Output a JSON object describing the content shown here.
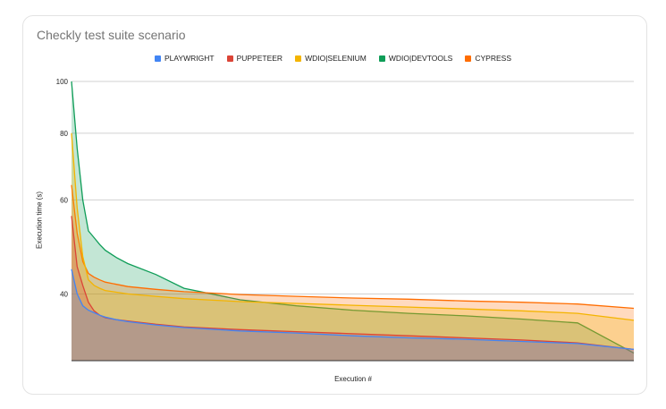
{
  "chart_data": {
    "type": "area",
    "title": "Checkly test suite scenario",
    "xlabel": "Execution #",
    "ylabel": "Execution time (s)",
    "yscale": "log",
    "ylim": [
      30,
      100
    ],
    "yticks": [
      40,
      60,
      80,
      100
    ],
    "grid": true,
    "legend_position": "top",
    "x": [
      0,
      1,
      2,
      3,
      4,
      5,
      6,
      8,
      10,
      15,
      20,
      30,
      40,
      50,
      60,
      70,
      80,
      90,
      100
    ],
    "series": [
      {
        "name": "PLAYWRIGHT",
        "color": "#4285f4",
        "values": [
          44.5,
          40,
          38,
          37.3,
          36.9,
          36.5,
          36.2,
          35.8,
          35.5,
          35.0,
          34.6,
          34.1,
          33.8,
          33.4,
          33.1,
          32.9,
          32.6,
          32.3,
          31.5
        ]
      },
      {
        "name": "PUPPETEER",
        "color": "#db4437",
        "values": [
          56,
          45,
          41.5,
          38.6,
          37.2,
          36.5,
          36.1,
          35.8,
          35.6,
          35.1,
          34.7,
          34.3,
          34.0,
          33.7,
          33.4,
          33.1,
          32.8,
          32.4,
          31.5
        ]
      },
      {
        "name": "WDIO|SELENIUM",
        "color": "#f4b400",
        "values": [
          80,
          58,
          47,
          42.5,
          41.5,
          41.0,
          40.6,
          40.3,
          40.0,
          39.6,
          39.2,
          38.7,
          38.4,
          38.1,
          37.8,
          37.5,
          37.2,
          36.8,
          35.7
        ]
      },
      {
        "name": "WDIO|DEVTOOLS",
        "color": "#0f9d58",
        "values": [
          100,
          75,
          60,
          52.5,
          51.0,
          49.5,
          48.3,
          46.8,
          45.6,
          43.5,
          41.0,
          39.0,
          38.0,
          37.3,
          36.8,
          36.4,
          35.9,
          35.3,
          31.0
        ]
      },
      {
        "name": "CYPRESS",
        "color": "#ff6d01",
        "values": [
          64,
          52,
          46,
          43.7,
          43.0,
          42.5,
          42.1,
          41.7,
          41.3,
          40.8,
          40.4,
          39.9,
          39.6,
          39.3,
          39.1,
          38.8,
          38.6,
          38.3,
          37.6
        ]
      }
    ]
  }
}
